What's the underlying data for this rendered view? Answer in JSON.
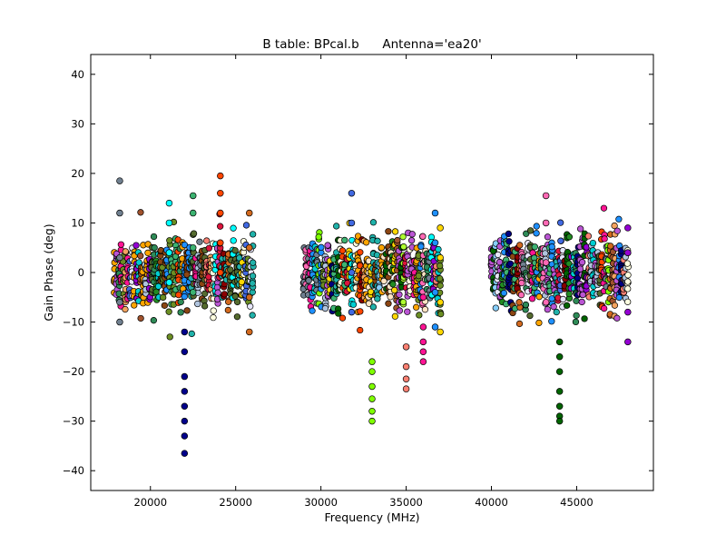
{
  "chart_data": {
    "type": "scatter",
    "title": "B table: BPcal.b      Antenna='ea20'",
    "xlabel": "Frequency (MHz)",
    "ylabel": "Gain Phase (deg)",
    "xlim": [
      16500,
      49500
    ],
    "ylim": [
      -44,
      44
    ],
    "x_ticks": [
      20000,
      25000,
      30000,
      35000,
      40000,
      45000
    ],
    "y_ticks": [
      -40,
      -30,
      -20,
      -10,
      0,
      10,
      20,
      30,
      40
    ],
    "grid": false,
    "legend": "none",
    "marker": "circle",
    "marker_edge_color": "#000000",
    "spw_ranges_mhz": [
      [
        17900,
        26000
      ],
      [
        29000,
        37000
      ],
      [
        40000,
        48000
      ]
    ],
    "series": [
      {
        "color": "#708090",
        "x": [
          18200,
          18200,
          18200,
          18200,
          18200
        ],
        "y": [
          18.5,
          12,
          3,
          -6,
          -10
        ]
      },
      {
        "color": "#00008b",
        "x": [
          22000,
          22000,
          22000,
          22000,
          22000,
          22000,
          22000,
          22000
        ],
        "y": [
          -12,
          -16,
          -21,
          -24,
          -27,
          -30,
          -33,
          -36.5
        ]
      },
      {
        "color": "#ff4500",
        "x": [
          24100,
          24100,
          24100,
          24100,
          24100
        ],
        "y": [
          19.5,
          16,
          12,
          6,
          0
        ]
      },
      {
        "color": "#00ffff",
        "x": [
          21100,
          21100,
          21100,
          21100
        ],
        "y": [
          14,
          10,
          4,
          -2
        ]
      },
      {
        "color": "#3cb371",
        "x": [
          22500,
          22500,
          22500,
          22500
        ],
        "y": [
          15.5,
          12,
          5,
          -4
        ]
      },
      {
        "color": "#ff1493",
        "x": [
          36000,
          36000,
          36000,
          36000,
          36000
        ],
        "y": [
          -11,
          -14,
          -16,
          -18,
          -5
        ]
      },
      {
        "color": "#7fff00",
        "x": [
          33000,
          33000,
          33000,
          33000,
          33000,
          33000
        ],
        "y": [
          -18,
          -20,
          -23,
          -25.5,
          -28,
          -30
        ]
      },
      {
        "color": "#fa8072",
        "x": [
          35000,
          35000,
          35000,
          35000
        ],
        "y": [
          -15,
          -19,
          -21.5,
          -23.5
        ]
      },
      {
        "color": "#006400",
        "x": [
          44000,
          44000,
          44000,
          44000,
          44000,
          44000,
          44000
        ],
        "y": [
          -14,
          -17,
          -20,
          -24,
          -27,
          -29,
          -30
        ]
      },
      {
        "color": "#1e90ff",
        "x": [
          36700,
          36700,
          36700,
          36700
        ],
        "y": [
          12,
          6,
          -4,
          -11
        ]
      },
      {
        "color": "#ffd700",
        "x": [
          37000,
          37000,
          37000,
          37000
        ],
        "y": [
          9,
          3,
          -6,
          -12
        ]
      },
      {
        "color": "#9400d3",
        "x": [
          48000,
          48000,
          48000,
          48000
        ],
        "y": [
          9,
          4,
          -8,
          -14
        ]
      },
      {
        "color": "#ff69b4",
        "x": [
          43200,
          43200,
          43200,
          43200
        ],
        "y": [
          15.5,
          10,
          2,
          -6
        ]
      },
      {
        "color": "#4169e1",
        "x": [
          31800,
          31800,
          31800,
          31800
        ],
        "y": [
          16,
          10,
          0,
          -8
        ]
      },
      {
        "color": "#d2691e",
        "x": [
          25800,
          25800,
          25800,
          25800
        ],
        "y": [
          12,
          5,
          -5,
          -12
        ]
      }
    ]
  }
}
